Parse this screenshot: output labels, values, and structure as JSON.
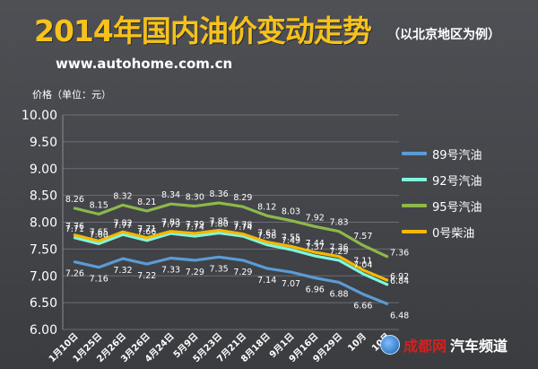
{
  "header": {
    "title": "2014年国内油价变动走势",
    "subtitle": "（以北京地区为例）",
    "site": "www.autohome.com.cn"
  },
  "watermark": {
    "brand": "成都网",
    "channel": "汽车频道"
  },
  "chart_data": {
    "type": "line",
    "ylabel": "价格（单位：元）",
    "xlabel": "",
    "ylim": [
      6.0,
      10.0
    ],
    "yticks": [
      "6.00",
      "6.50",
      "7.00",
      "7.50",
      "8.00",
      "8.50",
      "9.00",
      "9.50",
      "10.00"
    ],
    "categories": [
      "1月10日",
      "1月25日",
      "2月26日",
      "3月26日",
      "4月24日",
      "5月9日",
      "5月23日",
      "7月21日",
      "8月18日",
      "9月1日",
      "9月16日",
      "9月29日",
      "10月",
      "10月"
    ],
    "grid": true,
    "legend_position": "right",
    "series": [
      {
        "name": "89号汽油",
        "color": "#5b9bd5",
        "values": [
          7.26,
          7.16,
          7.32,
          7.22,
          7.33,
          7.29,
          7.35,
          7.29,
          7.14,
          7.07,
          6.96,
          6.88,
          6.66,
          6.48
        ]
      },
      {
        "name": "92号汽油",
        "color": "#7ff7e0",
        "values": [
          7.71,
          7.6,
          7.77,
          7.66,
          7.79,
          7.74,
          7.8,
          7.74,
          7.58,
          7.49,
          7.37,
          7.29,
          7.04,
          6.84
        ]
      },
      {
        "name": "95号汽油",
        "color": "#8db84a",
        "values": [
          8.26,
          8.15,
          8.32,
          8.21,
          8.34,
          8.3,
          8.36,
          8.29,
          8.12,
          8.03,
          7.92,
          7.83,
          7.57,
          7.36
        ]
      },
      {
        "name": "0号柴油",
        "color": "#f5b800",
        "values": [
          7.76,
          7.65,
          7.82,
          7.71,
          7.83,
          7.79,
          7.85,
          7.78,
          7.63,
          7.55,
          7.44,
          7.36,
          7.11,
          6.92
        ]
      }
    ]
  }
}
